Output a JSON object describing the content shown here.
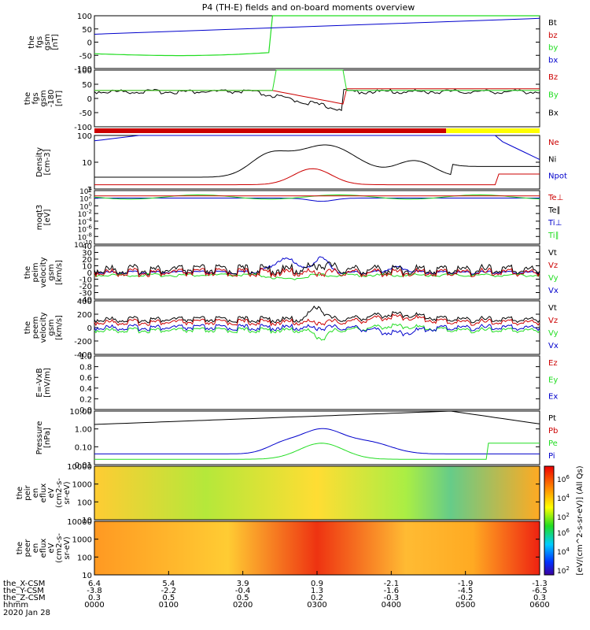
{
  "title": "P4 (TH-E) fields and on-board moments overview",
  "colors": {
    "black": "#000000",
    "red": "#cc0000",
    "green": "#22dd22",
    "blue": "#0000cc",
    "yellow": "#ffff00"
  },
  "colorbar": {
    "ticks": [
      "10^6",
      "10^4",
      "10^2"
    ],
    "ticks2": [
      "10^6",
      "10^4",
      "10^2"
    ],
    "label": "[eV/(cm^2-s-sr-eV)] (All Qs)"
  },
  "xaxis": {
    "rows": [
      {
        "label": "the_X-CSM",
        "values": [
          "6.4",
          "5.4",
          "3.9",
          "0.9",
          "-2.1",
          "-1.9",
          "-1.3"
        ]
      },
      {
        "label": "the_Y-CSM",
        "values": [
          "-3.8",
          "-2.2",
          "-0.4",
          "1.3",
          "-1.6",
          "-4.5",
          "-6.5"
        ]
      },
      {
        "label": "the_Z-CSM",
        "values": [
          "0.3",
          "0.5",
          "0.5",
          "0.2",
          "-0.3",
          "-0.2",
          "0.3"
        ]
      },
      {
        "label": "hhmm",
        "values": [
          "0000",
          "0100",
          "0200",
          "0300",
          "0400",
          "0500",
          "0600"
        ]
      }
    ],
    "date": "2020 Jan 28"
  },
  "chart_data": [
    {
      "type": "line",
      "panel": "fgs",
      "ylabel": [
        "the",
        "fgs",
        "gsm",
        "[nT]"
      ],
      "ylim": [
        -100,
        100
      ],
      "ticks": [
        "100",
        "50",
        "0",
        "-50",
        "-100"
      ],
      "series": [
        {
          "name": "Bt",
          "color": "#000000"
        },
        {
          "name": "bz",
          "color": "#cc0000"
        },
        {
          "name": "by",
          "color": "#22dd22"
        },
        {
          "name": "bx",
          "color": "#0000cc"
        }
      ]
    },
    {
      "type": "line",
      "panel": "fgs-180",
      "ylabel": [
        "the",
        "fgs",
        "gsm",
        "-180",
        "[nT]"
      ],
      "ylim": [
        -120,
        100
      ],
      "ticks": [
        "100",
        "50",
        "0",
        "-50",
        "-100"
      ],
      "series": [
        {
          "name": "Bz",
          "color": "#cc0000"
        },
        {
          "name": "By",
          "color": "#22dd22"
        },
        {
          "name": "Bx",
          "color": "#000000"
        }
      ]
    },
    {
      "type": "line",
      "panel": "density",
      "ylabel": [
        "Density",
        "[cm-3]"
      ],
      "ylim": [
        0.1,
        300
      ],
      "log": true,
      "ticks": [
        "100",
        "10",
        "1"
      ],
      "series": [
        {
          "name": "Ne",
          "color": "#cc0000"
        },
        {
          "name": "Ni",
          "color": "#000000"
        },
        {
          "name": "Npot",
          "color": "#0000cc"
        }
      ]
    },
    {
      "type": "line",
      "panel": "temperature",
      "ylabel": [
        "moqt3",
        "[eV]"
      ],
      "log": true,
      "ticks": [
        "10^4",
        "10^2",
        "10^0",
        "10^-2",
        "10^-4",
        "10^-6",
        "10^-8",
        "10^-10"
      ],
      "series": [
        {
          "name": "Te⊥",
          "color": "#cc0000"
        },
        {
          "name": "Te∥",
          "color": "#000000"
        },
        {
          "name": "Ti⊥",
          "color": "#0000cc"
        },
        {
          "name": "Ti∥",
          "color": "#22dd22"
        }
      ]
    },
    {
      "type": "line",
      "panel": "peim",
      "ylabel": [
        "the",
        "peim",
        "velocity",
        "gsm",
        "[km/s]"
      ],
      "ylim": [
        -40,
        40
      ],
      "ticks": [
        "40",
        "30",
        "20",
        "10",
        "0",
        "-10",
        "-20",
        "-30",
        "-40"
      ],
      "series": [
        {
          "name": "Vt",
          "color": "#000000"
        },
        {
          "name": "Vz",
          "color": "#cc0000"
        },
        {
          "name": "Vy",
          "color": "#22dd22"
        },
        {
          "name": "Vx",
          "color": "#0000cc"
        }
      ]
    },
    {
      "type": "line",
      "panel": "peem",
      "ylabel": [
        "the",
        "peem",
        "velocity",
        "gsm",
        "[km/s]"
      ],
      "ylim": [
        -400,
        400
      ],
      "ticks": [
        "400",
        "200",
        "0",
        "-200",
        "-400"
      ],
      "series": [
        {
          "name": "Vt",
          "color": "#000000"
        },
        {
          "name": "Vz",
          "color": "#cc0000"
        },
        {
          "name": "Vy",
          "color": "#22dd22"
        },
        {
          "name": "Vx",
          "color": "#0000cc"
        }
      ]
    },
    {
      "type": "line",
      "panel": "efield",
      "ylabel": [
        "E=-VxB",
        "[mV/m]"
      ],
      "ylim": [
        0,
        1
      ],
      "ticks": [
        "1.0",
        "0.8",
        "0.6",
        "0.4",
        "0.2",
        "0.0"
      ],
      "series": [
        {
          "name": "Ez",
          "color": "#cc0000"
        },
        {
          "name": "Ey",
          "color": "#22dd22"
        },
        {
          "name": "Ex",
          "color": "#0000cc"
        }
      ]
    },
    {
      "type": "line",
      "panel": "pressure",
      "ylabel": [
        "Pressure",
        "[nPa]"
      ],
      "log": true,
      "ticks": [
        "10.00",
        "1.00",
        "0.10",
        "0.01"
      ],
      "series": [
        {
          "name": "Pt",
          "color": "#000000"
        },
        {
          "name": "Pb",
          "color": "#cc0000"
        },
        {
          "name": "Pe",
          "color": "#22dd22"
        },
        {
          "name": "Pi",
          "color": "#0000cc"
        }
      ]
    },
    {
      "type": "heatmap",
      "panel": "peir",
      "ylabel": [
        "the",
        "peir",
        "en",
        "eflux",
        "eV",
        "(cm2-s-",
        "sr-eV)"
      ],
      "ticks": [
        "10000",
        "1000",
        "100",
        "10"
      ]
    },
    {
      "type": "heatmap",
      "panel": "peer",
      "ylabel": [
        "the",
        "peer",
        "en",
        "eflux",
        "eV",
        "(cm2-s-",
        "sr-eV)"
      ],
      "ticks": [
        "10000",
        "1000",
        "100",
        "10"
      ]
    }
  ]
}
